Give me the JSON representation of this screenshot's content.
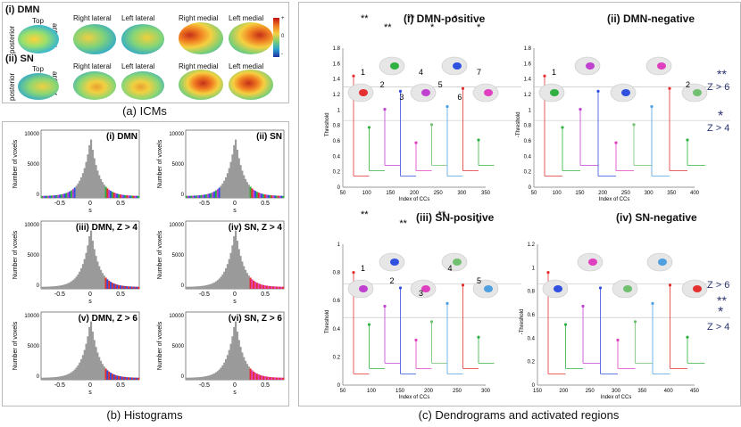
{
  "icms": {
    "row1_label": "(i) DMN",
    "row2_label": "(ii) SN",
    "top_label": "Top",
    "posterior_label": "posterior",
    "anterior_label": "anterior",
    "view_labels": [
      "Right lateral",
      "Left lateral",
      "Right medial",
      "Left medial"
    ],
    "colorbar_ticks": [
      "+",
      "0",
      "-"
    ],
    "caption": "(a) ICMs"
  },
  "histograms": {
    "caption": "(b) Histograms",
    "ylabel": "Number of voxels",
    "xlabel": "s",
    "xticks": [
      "-0.5",
      "0",
      "0.5"
    ],
    "yticks": [
      "10000",
      "5000",
      "0"
    ],
    "panels": [
      {
        "title": "(i) DMN"
      },
      {
        "title": "(ii) SN"
      },
      {
        "title": "(iii) DMN, Z > 4"
      },
      {
        "title": "(iv) SN, Z > 4"
      },
      {
        "title": "(v) DMN, Z > 6"
      },
      {
        "title": "(vi) SN, Z > 6"
      }
    ]
  },
  "dendrograms": {
    "caption": "(c) Dendrograms and activated regions",
    "xlabel": "Index of CCs",
    "panels": [
      {
        "title": "(i) DMN-positive",
        "ylabel": "Threshold",
        "xticks": [
          "50",
          "100",
          "150",
          "200",
          "250",
          "300",
          "350"
        ],
        "yticks": [
          "1.8",
          "1.6",
          "1.4",
          "1.2",
          "1",
          "0.8",
          "0.6",
          "0.4",
          "0.2",
          "0"
        ],
        "labels": [
          "1",
          "2",
          "3",
          "4",
          "5",
          "6",
          "7"
        ],
        "stars": [
          "**",
          "**",
          "**",
          "*",
          "*",
          "*"
        ]
      },
      {
        "title": "(ii) DMN-negative",
        "ylabel": "-Threshold",
        "xticks": [
          "50",
          "100",
          "150",
          "200",
          "250",
          "300",
          "350",
          "400"
        ],
        "yticks": [
          "1.8",
          "1.6",
          "1.4",
          "1.2",
          "1",
          "0.8",
          "0.6",
          "0.4",
          "0.2",
          "0"
        ],
        "labels": [
          "1",
          "2"
        ]
      },
      {
        "title": "(iii) SN-positive",
        "ylabel": "Threshold",
        "xticks": [
          "50",
          "100",
          "150",
          "200",
          "250",
          "300"
        ],
        "yticks": [
          "1",
          "0.8",
          "0.6",
          "0.4",
          "0.2",
          "0"
        ],
        "labels": [
          "1",
          "2",
          "3",
          "4",
          "5"
        ],
        "stars": [
          "**",
          "**",
          "**",
          "*"
        ]
      },
      {
        "title": "(iv) SN-negative",
        "ylabel": "-Threshold",
        "xticks": [
          "150",
          "200",
          "250",
          "300",
          "350",
          "400",
          "450"
        ],
        "yticks": [
          "1.2",
          "1",
          "0.8",
          "0.6",
          "0.4",
          "0.2",
          "0"
        ]
      }
    ],
    "legend_top": {
      "double_star": "**",
      "z6": "Z > 6",
      "star": "*",
      "z4": "Z > 4"
    },
    "legend_bottom": {
      "z6": "Z > 6",
      "double_star": "**",
      "star": "*",
      "z4": "Z > 4"
    }
  }
}
